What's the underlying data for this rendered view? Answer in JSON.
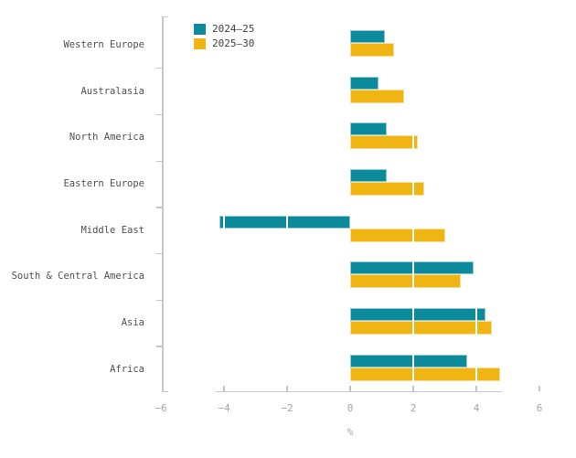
{
  "chart_data": {
    "type": "bar",
    "orientation": "horizontal",
    "title": "",
    "xlabel": "%",
    "ylabel": "",
    "xlim": [
      -6,
      6
    ],
    "grid": false,
    "legend_position": "top-inside",
    "segment_divider_interval": 2,
    "categories": [
      "Western Europe",
      "Australasia",
      "North America",
      "Eastern Europe",
      "Middle East",
      "South & Central America",
      "Asia",
      "Africa"
    ],
    "series": [
      {
        "name": "2024–25",
        "color": "#0b8a9b",
        "values": [
          1.1,
          0.9,
          1.15,
          1.15,
          -4.15,
          3.9,
          4.3,
          3.7
        ]
      },
      {
        "name": "2025–30",
        "color": "#f0b513",
        "values": [
          1.4,
          1.7,
          2.15,
          2.35,
          3.0,
          3.5,
          4.5,
          4.75
        ]
      }
    ],
    "x_ticks": [
      {
        "label": "−6",
        "value": -6
      },
      {
        "label": "−4",
        "value": -4
      },
      {
        "label": "−2",
        "value": -2
      },
      {
        "label": "0",
        "value": 0
      },
      {
        "label": "2",
        "value": 2
      },
      {
        "label": "4",
        "value": 4
      },
      {
        "label": "6",
        "value": 6
      }
    ]
  },
  "colors": {
    "series_teal": "#0b8a9b",
    "series_yellow": "#f0b513",
    "axis_line": "#c8c8c8",
    "tick_label_text": "#a5a5a5",
    "category_label_text": "#4f4f4f",
    "legend_text": "#3f3f3f",
    "background": "#ffffff",
    "bar_divider": "#ffffff"
  }
}
